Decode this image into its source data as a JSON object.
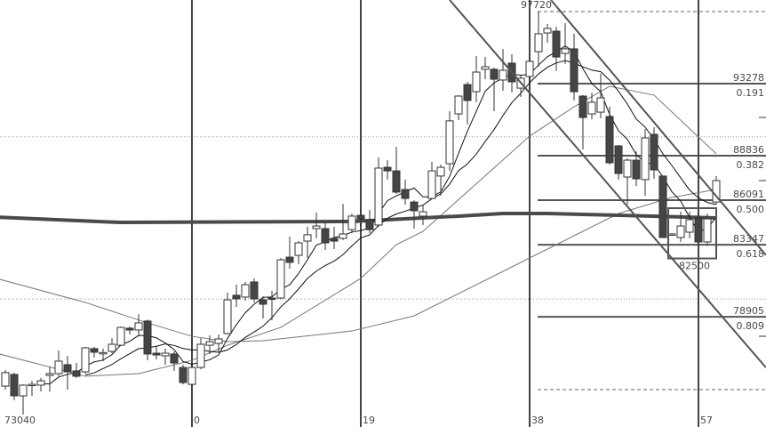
{
  "chart_data": {
    "type": "candlestick",
    "ylim": [
      72110,
      98433
    ],
    "grid_y": [
      80000,
      90000
    ],
    "start_index": -21,
    "candles_ohlc": [
      [
        74630,
        75620,
        74410,
        75460
      ],
      [
        75350,
        75460,
        73760,
        74030
      ],
      [
        74030,
        74740,
        73040,
        74690
      ],
      [
        74690,
        74960,
        74030,
        74740
      ],
      [
        74690,
        75130,
        74300,
        74960
      ],
      [
        75290,
        75840,
        74300,
        75400
      ],
      [
        75400,
        76830,
        75240,
        76170
      ],
      [
        75950,
        76500,
        74410,
        75510
      ],
      [
        75570,
        76060,
        75130,
        75240
      ],
      [
        75510,
        77050,
        75400,
        76990
      ],
      [
        76940,
        77050,
        76390,
        76720
      ],
      [
        76660,
        76940,
        76170,
        76700
      ],
      [
        76770,
        77590,
        76660,
        77210
      ],
      [
        77150,
        78310,
        77100,
        78250
      ],
      [
        78200,
        78310,
        77810,
        78090
      ],
      [
        78090,
        79070,
        77700,
        78530
      ],
      [
        78640,
        78740,
        76220,
        76610
      ],
      [
        76660,
        77050,
        76280,
        76550
      ],
      [
        76500,
        76940,
        75950,
        76660
      ],
      [
        76610,
        76770,
        75570,
        76060
      ],
      [
        75780,
        75950,
        74740,
        74850
      ],
      [
        74740,
        75950,
        74690,
        75780
      ],
      [
        75780,
        77590,
        75670,
        77210
      ],
      [
        77150,
        77760,
        76610,
        77370
      ],
      [
        77260,
        77810,
        76720,
        77540
      ],
      [
        77870,
        80390,
        77810,
        79950
      ],
      [
        80230,
        80880,
        79510,
        80010
      ],
      [
        80120,
        81050,
        79900,
        80880
      ],
      [
        81050,
        81270,
        79790,
        80010
      ],
      [
        79950,
        80170,
        78800,
        79680
      ],
      [
        80060,
        80500,
        78690,
        80030
      ],
      [
        80060,
        82530,
        80010,
        82420
      ],
      [
        82580,
        83850,
        81870,
        82260
      ],
      [
        82690,
        83570,
        82150,
        83460
      ],
      [
        83570,
        84450,
        82530,
        83960
      ],
      [
        84340,
        85330,
        83740,
        84500
      ],
      [
        84340,
        84720,
        83020,
        83460
      ],
      [
        83740,
        84450,
        83080,
        83570
      ],
      [
        83740,
        85870,
        83630,
        84010
      ],
      [
        84280,
        85270,
        84070,
        85110
      ],
      [
        85160,
        85550,
        84450,
        84940
      ],
      [
        84890,
        85490,
        84070,
        84280
      ],
      [
        84560,
        88730,
        84450,
        88070
      ],
      [
        88120,
        88560,
        87360,
        87900
      ],
      [
        87900,
        89380,
        86480,
        86590
      ],
      [
        86750,
        87360,
        85820,
        86200
      ],
      [
        85980,
        86090,
        84340,
        85440
      ],
      [
        85110,
        85820,
        84560,
        85380
      ],
      [
        86200,
        88450,
        86150,
        87900
      ],
      [
        87580,
        88290,
        86370,
        88120
      ],
      [
        88340,
        91580,
        87900,
        90980
      ],
      [
        91410,
        92560,
        91030,
        92510
      ],
      [
        93220,
        93390,
        90760,
        92240
      ],
      [
        92780,
        94980,
        92130,
        93990
      ],
      [
        94160,
        94920,
        93550,
        94320
      ],
      [
        94160,
        94270,
        91580,
        93550
      ],
      [
        93500,
        95420,
        92840,
        94100
      ],
      [
        94540,
        95090,
        92730,
        93390
      ],
      [
        93000,
        93770,
        92460,
        93610
      ],
      [
        93720,
        94700,
        93390,
        94650
      ],
      [
        95250,
        97720,
        94320,
        96350
      ],
      [
        96400,
        96950,
        95800,
        96680
      ],
      [
        96510,
        96790,
        94050,
        94920
      ],
      [
        95140,
        97010,
        94490,
        95420
      ],
      [
        95420,
        96350,
        92240,
        92780
      ],
      [
        92510,
        92570,
        89220,
        91190
      ],
      [
        91410,
        92730,
        91080,
        92130
      ],
      [
        91520,
        93880,
        91140,
        92400
      ],
      [
        91250,
        91850,
        88290,
        88400
      ],
      [
        89440,
        89490,
        87360,
        87740
      ],
      [
        87520,
        88670,
        85820,
        88560
      ],
      [
        88560,
        89110,
        86970,
        87410
      ],
      [
        87360,
        90480,
        86370,
        89930
      ],
      [
        90150,
        90590,
        87410,
        87960
      ],
      [
        87580,
        87580,
        83790,
        83790
      ],
      [
        84010,
        84060,
        83960,
        84010
      ],
      [
        83790,
        85380,
        83520,
        84500
      ],
      [
        84120,
        85380,
        83740,
        84890
      ],
      [
        85000,
        85270,
        83410,
        83520
      ],
      [
        83520,
        85270,
        83300,
        84940
      ],
      [
        85980,
        87580,
        85820,
        87300
      ]
    ],
    "long_line_thick": [
      [
        -22,
        85050
      ],
      [
        -8,
        84720
      ],
      [
        18,
        84780
      ],
      [
        22,
        84890
      ],
      [
        30,
        85110
      ],
      [
        35,
        85270
      ],
      [
        40,
        85270
      ],
      [
        48,
        85160
      ],
      [
        59,
        85000
      ]
    ],
    "gray_line_a": [
      [
        -22,
        81270
      ],
      [
        -12,
        79790
      ],
      [
        -5,
        78530
      ],
      [
        0,
        77700
      ],
      [
        4,
        77370
      ],
      [
        8,
        77430
      ],
      [
        18,
        78030
      ],
      [
        25,
        78960
      ],
      [
        32,
        80880
      ],
      [
        38,
        82530
      ],
      [
        43,
        83900
      ],
      [
        48,
        85270
      ],
      [
        54,
        86260
      ],
      [
        59,
        86750
      ]
    ],
    "gray_line_b": [
      [
        -22,
        76660
      ],
      [
        -12,
        75240
      ],
      [
        -6,
        75400
      ],
      [
        0,
        76220
      ],
      [
        4,
        77150
      ],
      [
        10,
        78250
      ],
      [
        19,
        81270
      ],
      [
        23,
        83350
      ],
      [
        26,
        84170
      ],
      [
        38,
        90040
      ],
      [
        43,
        91850
      ],
      [
        47,
        93110
      ],
      [
        52,
        92570
      ],
      [
        59,
        88950
      ]
    ],
    "channel_lines": [
      {
        "from": [
          29,
          98433
        ],
        "to": [
          64.6,
          75770
        ]
      },
      {
        "from": [
          40.4,
          98433
        ],
        "to": [
          64.6,
          82700
        ]
      }
    ],
    "x_markers": [
      {
        "index": 0,
        "label": "0"
      },
      {
        "index": 19,
        "label": "19"
      },
      {
        "index": 38,
        "label": "38"
      },
      {
        "index": 57,
        "label": "57"
      }
    ],
    "fib_levels": [
      {
        "price": 93278,
        "ratio": "0.191"
      },
      {
        "price": 88836,
        "ratio": "0.382"
      },
      {
        "price": 86091,
        "ratio": "0.500"
      },
      {
        "price": 83347,
        "ratio": "0.618"
      },
      {
        "price": 78905,
        "ratio": "0.809"
      }
    ],
    "high_label": {
      "index": 39,
      "price": 97720,
      "text": "97720"
    },
    "low_label": {
      "index": -19,
      "price": 73040,
      "text": "73040"
    },
    "box": {
      "from_index": 54,
      "to_index": 59,
      "top": 85600,
      "bottom": 82500,
      "text": "82500"
    },
    "dashed_levels": [
      97720,
      74410
    ],
    "colors": {
      "bear": "#454545",
      "bull": "#ffffff",
      "outline": "#333333",
      "fib": "#555555",
      "marker": "#444444",
      "ma": "#111111",
      "gray": "#777777"
    }
  }
}
